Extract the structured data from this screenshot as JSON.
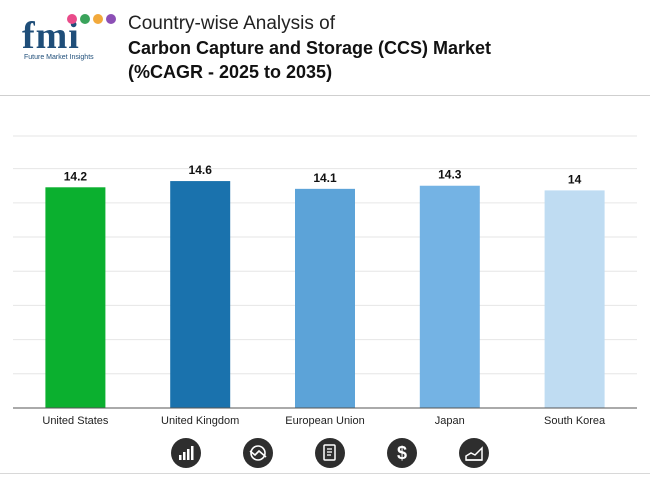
{
  "brand": {
    "logo_text": "fmi",
    "logo_sub": "Future Market Insights",
    "dot_colors": [
      "#e94b8a",
      "#3aa35b",
      "#f2a93b",
      "#8c4fb5"
    ]
  },
  "header": {
    "title_line1": "Country-wise Analysis of",
    "title_line2": "Carbon Capture and Storage (CCS) Market",
    "title_line3": "(%CAGR - 2025 to 2035)"
  },
  "chart_data": {
    "type": "bar",
    "categories": [
      "United States",
      "United Kingdom",
      "European Union",
      "Japan",
      "South Korea"
    ],
    "values": [
      14.2,
      14.6,
      14.1,
      14.3,
      14
    ],
    "data_labels": [
      "14.2",
      "14.6",
      "14.1",
      "14.3",
      "14"
    ],
    "colors": [
      "#0bb02f",
      "#1a72ad",
      "#5ca3d8",
      "#74b3e4",
      "#bfdcf2"
    ],
    "ylim": [
      0,
      17.5
    ],
    "grid": true,
    "title": "",
    "xlabel": "",
    "ylabel": ""
  },
  "footer_icons": [
    "bar-chart-icon",
    "trend-circle-icon",
    "document-icon",
    "dollar-icon",
    "area-growth-icon"
  ]
}
